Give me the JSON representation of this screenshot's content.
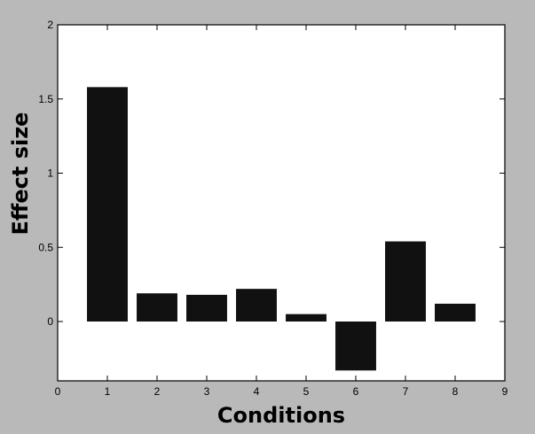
{
  "chart_data": {
    "type": "bar",
    "categories": [
      1,
      2,
      3,
      4,
      5,
      6,
      7,
      8
    ],
    "values": [
      1.58,
      0.19,
      0.18,
      0.22,
      0.05,
      -0.33,
      0.54,
      0.12
    ],
    "title": "",
    "xlabel": "Conditions",
    "ylabel": "Effect size",
    "xlim": [
      0,
      9
    ],
    "ylim": [
      -0.4,
      2
    ],
    "xticks": [
      0,
      1,
      2,
      3,
      4,
      5,
      6,
      7,
      8,
      9
    ],
    "yticks": [
      0,
      0.5,
      1,
      1.5,
      2
    ],
    "ytick_labels": [
      "0",
      "0.5",
      "1",
      "1.5",
      "2"
    ],
    "bar_color": "#111111",
    "plot_background": "#ffffff",
    "figure_background": "#b9b9b9",
    "grid": false,
    "legend": "none"
  }
}
